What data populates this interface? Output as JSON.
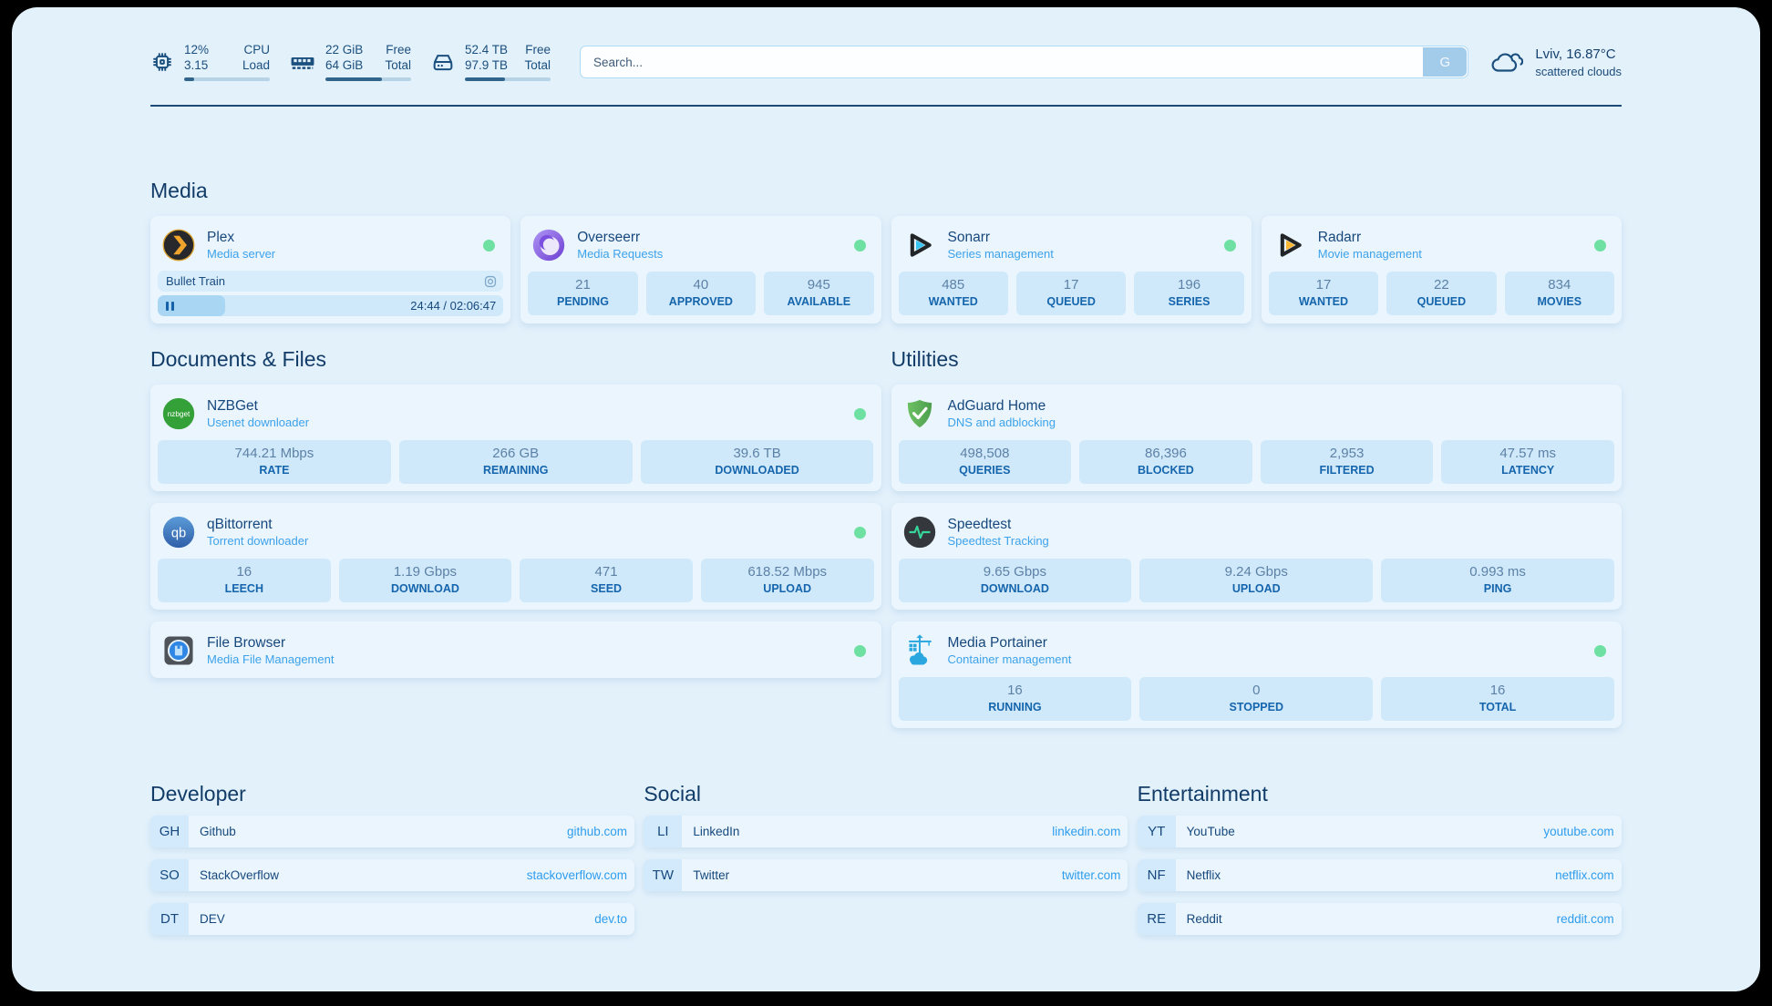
{
  "colors": {
    "status_online": "#6ee0a1",
    "accent_dark": "#1b4f7e",
    "accent_link": "#2f9ded"
  },
  "topbar": {
    "cpu": {
      "value_top": "12%",
      "value_bottom": "3.15",
      "label_top": "CPU",
      "label_bottom": "Load",
      "bar_percent": 12
    },
    "ram": {
      "value_top": "22 GiB",
      "value_bottom": "64 GiB",
      "label_top": "Free",
      "label_bottom": "Total",
      "bar_percent": 66
    },
    "disk": {
      "value_top": "52.4 TB",
      "value_bottom": "97.9 TB",
      "label_top": "Free",
      "label_bottom": "Total",
      "bar_percent": 47
    },
    "search": {
      "placeholder": "Search...",
      "button_label": "G"
    },
    "weather": {
      "location": "Lviv, 16.87°C",
      "condition": "scattered clouds"
    }
  },
  "sections": {
    "media": {
      "title": "Media",
      "plex": {
        "name": "Plex",
        "subtitle": "Media server",
        "now_playing": "Bullet Train",
        "time": "24:44 / 02:06:47",
        "progress_percent": 19.5
      },
      "overseerr": {
        "name": "Overseerr",
        "subtitle": "Media Requests",
        "stats": [
          {
            "value": "21",
            "label": "PENDING"
          },
          {
            "value": "40",
            "label": "APPROVED"
          },
          {
            "value": "945",
            "label": "AVAILABLE"
          }
        ]
      },
      "sonarr": {
        "name": "Sonarr",
        "subtitle": "Series management",
        "stats": [
          {
            "value": "485",
            "label": "WANTED"
          },
          {
            "value": "17",
            "label": "QUEUED"
          },
          {
            "value": "196",
            "label": "SERIES"
          }
        ]
      },
      "radarr": {
        "name": "Radarr",
        "subtitle": "Movie management",
        "stats": [
          {
            "value": "17",
            "label": "WANTED"
          },
          {
            "value": "22",
            "label": "QUEUED"
          },
          {
            "value": "834",
            "label": "MOVIES"
          }
        ]
      }
    },
    "documents": {
      "title": "Documents & Files",
      "nzbget": {
        "name": "NZBGet",
        "subtitle": "Usenet downloader",
        "stats": [
          {
            "value": "744.21 Mbps",
            "label": "RATE"
          },
          {
            "value": "266 GB",
            "label": "REMAINING"
          },
          {
            "value": "39.6 TB",
            "label": "DOWNLOADED"
          }
        ]
      },
      "qbittorrent": {
        "name": "qBittorrent",
        "subtitle": "Torrent downloader",
        "stats": [
          {
            "value": "16",
            "label": "LEECH"
          },
          {
            "value": "1.19 Gbps",
            "label": "DOWNLOAD"
          },
          {
            "value": "471",
            "label": "SEED"
          },
          {
            "value": "618.52 Mbps",
            "label": "UPLOAD"
          }
        ]
      },
      "filebrowser": {
        "name": "File Browser",
        "subtitle": "Media File Management"
      }
    },
    "utilities": {
      "title": "Utilities",
      "adguard": {
        "name": "AdGuard Home",
        "subtitle": "DNS and adblocking",
        "stats": [
          {
            "value": "498,508",
            "label": "QUERIES"
          },
          {
            "value": "86,396",
            "label": "BLOCKED"
          },
          {
            "value": "2,953",
            "label": "FILTERED"
          },
          {
            "value": "47.57 ms",
            "label": "LATENCY"
          }
        ]
      },
      "speedtest": {
        "name": "Speedtest",
        "subtitle": "Speedtest Tracking",
        "stats": [
          {
            "value": "9.65 Gbps",
            "label": "DOWNLOAD"
          },
          {
            "value": "9.24 Gbps",
            "label": "UPLOAD"
          },
          {
            "value": "0.993 ms",
            "label": "PING"
          }
        ]
      },
      "portainer": {
        "name": "Media Portainer",
        "subtitle": "Container management",
        "stats": [
          {
            "value": "16",
            "label": "RUNNING"
          },
          {
            "value": "0",
            "label": "STOPPED"
          },
          {
            "value": "16",
            "label": "TOTAL"
          }
        ]
      }
    },
    "developer": {
      "title": "Developer",
      "links": [
        {
          "tag": "GH",
          "name": "Github",
          "url": "github.com"
        },
        {
          "tag": "SO",
          "name": "StackOverflow",
          "url": "stackoverflow.com"
        },
        {
          "tag": "DT",
          "name": "DEV",
          "url": "dev.to"
        }
      ]
    },
    "social": {
      "title": "Social",
      "links": [
        {
          "tag": "LI",
          "name": "LinkedIn",
          "url": "linkedin.com"
        },
        {
          "tag": "TW",
          "name": "Twitter",
          "url": "twitter.com"
        }
      ]
    },
    "entertainment": {
      "title": "Entertainment",
      "links": [
        {
          "tag": "YT",
          "name": "YouTube",
          "url": "youtube.com"
        },
        {
          "tag": "NF",
          "name": "Netflix",
          "url": "netflix.com"
        },
        {
          "tag": "RE",
          "name": "Reddit",
          "url": "reddit.com"
        }
      ]
    }
  }
}
